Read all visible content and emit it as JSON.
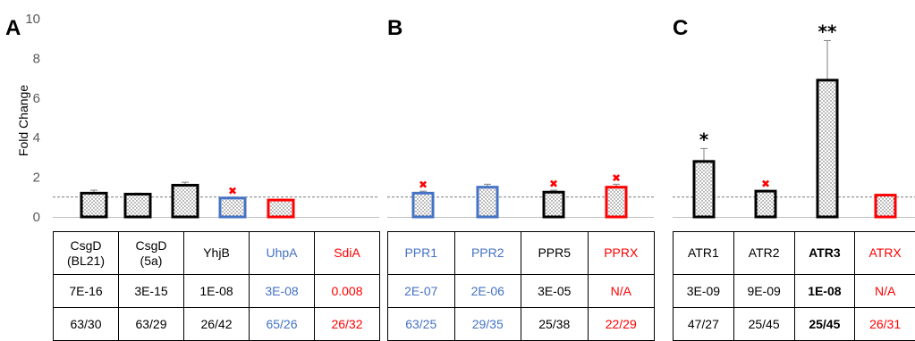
{
  "chart_data": [
    {
      "panel": "A",
      "type": "bar",
      "ylabel": "Fold Change",
      "ylim": [
        0,
        10
      ],
      "yticks": [
        "0",
        "2",
        "4",
        "6",
        "8",
        "10"
      ],
      "reference_line": 1,
      "categories": [
        "CsgD (BL21)",
        "CsgD (5a)",
        "YhjB",
        "UhpA",
        "SdiA"
      ],
      "values": [
        1.2,
        1.15,
        1.6,
        0.95,
        0.85
      ],
      "errors": [
        0.15,
        0.05,
        0.15,
        0.05,
        0.05
      ],
      "colors": [
        "#000000",
        "#000000",
        "#000000",
        "#4472c4",
        "#ff0000"
      ],
      "markers": [
        "",
        "",
        "",
        "✖",
        ""
      ],
      "grid": false,
      "table": {
        "names": [
          "CsgD\n(BL21)",
          "CsgD\n(5a)",
          "YhjB",
          "UhpA",
          "SdiA"
        ],
        "evalues": [
          "7E-16",
          "3E-15",
          "1E-08",
          "3E-08",
          "0.008"
        ],
        "ratios": [
          "63/30",
          "63/29",
          "26/42",
          "65/26",
          "26/32"
        ],
        "text_colors": [
          "black",
          "black",
          "black",
          "blue",
          "red"
        ],
        "bold": [
          false,
          false,
          false,
          false,
          false
        ]
      }
    },
    {
      "panel": "B",
      "type": "bar",
      "ylim": [
        0,
        10
      ],
      "reference_line": 1,
      "categories": [
        "PPR1",
        "PPR2",
        "PPR5",
        "PPRX"
      ],
      "values": [
        1.2,
        1.5,
        1.25,
        1.5
      ],
      "errors": [
        0.1,
        0.15,
        0.1,
        0.15
      ],
      "colors": [
        "#4472c4",
        "#4472c4",
        "#000000",
        "#ff0000"
      ],
      "markers": [
        "✖",
        "",
        "✖",
        "✖"
      ],
      "grid": false,
      "table": {
        "names": [
          "PPR1",
          "PPR2",
          "PPR5",
          "PPRX"
        ],
        "evalues": [
          "2E-07",
          "2E-06",
          "3E-05",
          "N/A"
        ],
        "ratios": [
          "63/25",
          "29/35",
          "25/38",
          "22/29"
        ],
        "text_colors": [
          "blue",
          "blue",
          "black",
          "red"
        ],
        "bold": [
          false,
          false,
          false,
          false
        ]
      }
    },
    {
      "panel": "C",
      "type": "bar",
      "ylim": [
        0,
        10
      ],
      "reference_line": 1,
      "categories": [
        "ATR1",
        "ATR2",
        "ATR3",
        "ATRX"
      ],
      "values": [
        2.8,
        1.3,
        6.9,
        1.1
      ],
      "errors": [
        0.65,
        0.05,
        2.0,
        0.05
      ],
      "colors": [
        "#000000",
        "#000000",
        "#000000",
        "#ff0000"
      ],
      "markers": [
        "*",
        "✖",
        "**",
        ""
      ],
      "grid": false,
      "table": {
        "names": [
          "ATR1",
          "ATR2",
          "ATR3",
          "ATRX"
        ],
        "evalues": [
          "3E-09",
          "9E-09",
          "1E-08",
          "N/A"
        ],
        "ratios": [
          "47/27",
          "25/45",
          "25/45",
          "26/31"
        ],
        "text_colors": [
          "black",
          "black",
          "black",
          "red"
        ],
        "bold": [
          false,
          false,
          true,
          false
        ]
      }
    }
  ]
}
